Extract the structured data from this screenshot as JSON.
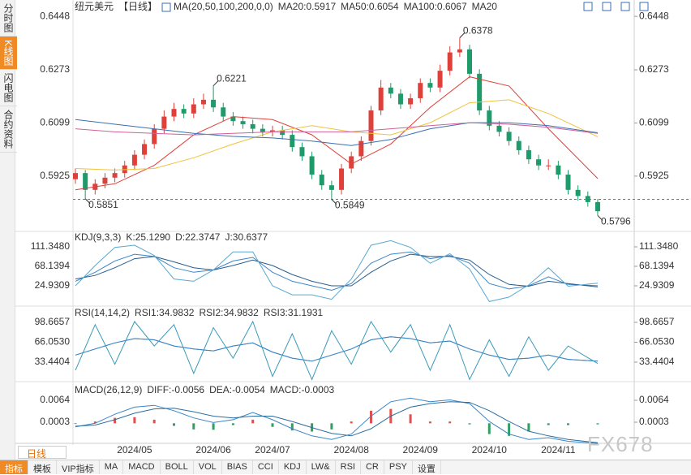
{
  "sidebar": [
    "分时图",
    "K线图",
    "闪电图",
    "合约资料"
  ],
  "toolbar": {
    "period": "日线",
    "tabs": [
      "指标",
      "模板",
      "VIP指标",
      "MA",
      "MACD",
      "BOLL",
      "VOL",
      "BIAS",
      "CCI",
      "KDJ",
      "LW&",
      "RSI",
      "CR",
      "PSY",
      "设置"
    ]
  },
  "watermark": "FX678",
  "chart_data": [
    {
      "type": "candlestick",
      "title": "纽元美元",
      "period_label": "【日线】",
      "indicator": "MA(20,50,100,200,0,0)",
      "categories": [
        null,
        null,
        null,
        null,
        null,
        null,
        "2024/05",
        null,
        null,
        null,
        null,
        null,
        null,
        null,
        "2024/06",
        null,
        null,
        null,
        null,
        null,
        "2024/07",
        null,
        null,
        null,
        null,
        null,
        null,
        null,
        "2024/08",
        null,
        null,
        null,
        null,
        null,
        null,
        "2024/09",
        null,
        null,
        null,
        null,
        null,
        null,
        "2024/10",
        null,
        null,
        null,
        null,
        null,
        null,
        "2024/11",
        null,
        null,
        null,
        null
      ],
      "open": [
        0.5915,
        0.5935,
        0.588,
        0.59,
        0.592,
        0.5935,
        0.596,
        0.5995,
        0.603,
        0.608,
        0.612,
        0.6145,
        0.613,
        0.616,
        0.6175,
        0.615,
        0.612,
        0.6105,
        0.6095,
        0.608,
        0.607,
        0.6075,
        0.606,
        0.602,
        0.599,
        0.593,
        0.5895,
        0.588,
        0.595,
        0.599,
        0.604,
        0.614,
        0.6215,
        0.6195,
        0.616,
        0.618,
        0.623,
        0.6215,
        0.627,
        0.633,
        0.634,
        0.626,
        0.614,
        0.609,
        0.607,
        0.604,
        0.601,
        0.598,
        0.596,
        0.596,
        0.593,
        0.588,
        0.586,
        0.584
      ],
      "high": [
        0.595,
        0.5945,
        0.5915,
        0.5935,
        0.595,
        0.5975,
        0.601,
        0.6045,
        0.6095,
        0.614,
        0.6165,
        0.616,
        0.618,
        0.6195,
        0.6221,
        0.6165,
        0.6135,
        0.612,
        0.611,
        0.6095,
        0.609,
        0.609,
        0.6075,
        0.6035,
        0.6005,
        0.5945,
        0.591,
        0.5965,
        0.6005,
        0.6055,
        0.6155,
        0.624,
        0.623,
        0.621,
        0.6195,
        0.6245,
        0.6245,
        0.629,
        0.635,
        0.6378,
        0.6355,
        0.6275,
        0.6155,
        0.6105,
        0.6085,
        0.6055,
        0.6025,
        0.5995,
        0.598,
        0.5975,
        0.5945,
        0.5895,
        0.5875,
        0.585
      ],
      "low": [
        0.59,
        0.5851,
        0.5865,
        0.5885,
        0.5905,
        0.592,
        0.5945,
        0.598,
        0.6015,
        0.6065,
        0.6105,
        0.6115,
        0.6115,
        0.6145,
        0.6135,
        0.6105,
        0.609,
        0.608,
        0.6065,
        0.6055,
        0.6055,
        0.6045,
        0.6005,
        0.5975,
        0.5915,
        0.588,
        0.5849,
        0.5865,
        0.5935,
        0.5975,
        0.6025,
        0.6125,
        0.618,
        0.6145,
        0.6145,
        0.6165,
        0.62,
        0.62,
        0.6255,
        0.6315,
        0.6245,
        0.6125,
        0.6075,
        0.6055,
        0.6025,
        0.5995,
        0.5965,
        0.5945,
        0.5945,
        0.5915,
        0.5865,
        0.5845,
        0.5825,
        0.5796
      ],
      "close": [
        0.5935,
        0.588,
        0.59,
        0.592,
        0.5935,
        0.596,
        0.5995,
        0.603,
        0.608,
        0.612,
        0.6145,
        0.613,
        0.616,
        0.6175,
        0.615,
        0.612,
        0.6105,
        0.6095,
        0.608,
        0.607,
        0.6075,
        0.606,
        0.602,
        0.599,
        0.593,
        0.5895,
        0.588,
        0.595,
        0.599,
        0.604,
        0.614,
        0.6215,
        0.6195,
        0.616,
        0.618,
        0.623,
        0.6215,
        0.627,
        0.633,
        0.634,
        0.626,
        0.614,
        0.609,
        0.607,
        0.604,
        0.601,
        0.598,
        0.596,
        0.596,
        0.593,
        0.588,
        0.586,
        0.584,
        0.581
      ],
      "up_color": "#e0403a",
      "down_color": "#1f9a6a",
      "ylim": [
        0.5752,
        0.6475
      ],
      "yticks": [
        0.5925,
        0.6099,
        0.6273,
        0.6448
      ],
      "annotations": [
        {
          "label": "0.5851",
          "value": 0.5851,
          "side": "low"
        },
        {
          "label": "0.6221",
          "value": 0.6221,
          "side": "high"
        },
        {
          "label": "0.5849",
          "value": 0.5849,
          "side": "low",
          "line": "dashed"
        },
        {
          "label": "0.6378",
          "value": 0.6378,
          "side": "high"
        },
        {
          "label": "0.5796",
          "value": 0.5796,
          "side": "low"
        }
      ],
      "series": [
        {
          "label": "MA20:0.5917",
          "color": "#e0403a",
          "x": [
            0,
            4,
            8,
            12,
            16,
            20,
            24,
            28,
            32,
            36,
            40,
            44,
            48,
            53
          ],
          "values": [
            0.588,
            0.59,
            0.596,
            0.606,
            0.612,
            0.611,
            0.606,
            0.5965,
            0.603,
            0.615,
            0.625,
            0.622,
            0.608,
            0.5917
          ]
        },
        {
          "label": "MA50:0.6054",
          "color": "#f0c23c",
          "x": [
            0,
            4,
            8,
            12,
            16,
            20,
            24,
            28,
            32,
            36,
            40,
            44,
            48,
            53
          ],
          "values": [
            0.595,
            0.5945,
            0.595,
            0.5985,
            0.603,
            0.607,
            0.609,
            0.607,
            0.606,
            0.61,
            0.6165,
            0.6175,
            0.613,
            0.6054
          ]
        },
        {
          "label": "MA100:0.6067",
          "color": "#3a6fb0",
          "x": [
            0,
            4,
            8,
            12,
            16,
            20,
            24,
            28,
            32,
            36,
            40,
            44,
            48,
            53
          ],
          "values": [
            0.611,
            0.6095,
            0.608,
            0.6065,
            0.6055,
            0.605,
            0.604,
            0.6025,
            0.6045,
            0.608,
            0.61,
            0.61,
            0.609,
            0.6067
          ]
        },
        {
          "label": "MA20",
          "color": "#d0609a",
          "x": [
            0,
            4,
            8,
            12,
            16,
            20,
            24,
            28,
            32,
            36,
            40,
            44,
            48,
            53
          ],
          "values": [
            0.608,
            0.607,
            0.6065,
            0.606,
            0.6065,
            0.607,
            0.607,
            0.607,
            0.608,
            0.609,
            0.61,
            0.6095,
            0.6085,
            0.6065
          ]
        }
      ]
    },
    {
      "type": "line",
      "title": "KDJ(9,3,3)",
      "x": [
        0,
        2,
        4,
        6,
        8,
        10,
        12,
        14,
        16,
        18,
        20,
        22,
        24,
        26,
        28,
        30,
        32,
        34,
        36,
        38,
        40,
        42,
        44,
        46,
        48,
        50,
        53
      ],
      "ylim": [
        -21.87,
        140.15
      ],
      "yticks": [
        24.9309,
        68.1394,
        {
          "value": 111.348,
          "label": "111.3480"
        }
      ],
      "series": [
        {
          "label": "K:25.1290",
          "color": "#3a86c8",
          "values": [
            35,
            55,
            80,
            95,
            90,
            65,
            55,
            60,
            80,
            88,
            55,
            35,
            25,
            15,
            30,
            75,
            95,
            100,
            85,
            92,
            75,
            30,
            18,
            25,
            45,
            28,
            25.129
          ]
        },
        {
          "label": "D:22.3747",
          "color": "#2a5d8f",
          "values": [
            40,
            48,
            65,
            85,
            90,
            78,
            65,
            60,
            70,
            82,
            70,
            50,
            35,
            25,
            25,
            55,
            80,
            95,
            90,
            90,
            82,
            50,
            28,
            24,
            35,
            30,
            22.3747
          ]
        },
        {
          "label": "J:30.6377",
          "color": "#5aa8d0",
          "values": [
            25,
            70,
            110,
            115,
            92,
            40,
            35,
            60,
            100,
            100,
            25,
            5,
            5,
            -5,
            40,
            115,
            125,
            110,
            75,
            96,
            62,
            -10,
            0,
            27,
            65,
            24,
            30.6377
          ]
        }
      ]
    },
    {
      "type": "line",
      "title": "RSI(14,14,2)",
      "x": [
        0,
        2,
        4,
        6,
        8,
        10,
        12,
        14,
        16,
        18,
        20,
        22,
        24,
        26,
        28,
        30,
        32,
        34,
        36,
        38,
        40,
        42,
        44,
        46,
        48,
        50,
        53
      ],
      "ylim": [
        1.5,
        121.3
      ],
      "yticks": [
        33.4404,
        {
          "value": 66.053,
          "label": "66.0530"
        },
        98.6657
      ],
      "series": [
        {
          "label": "RSI1:34.9832",
          "color": "#3a86c8",
          "values": [
            45,
            55,
            65,
            72,
            70,
            60,
            55,
            52,
            60,
            65,
            50,
            40,
            35,
            45,
            55,
            70,
            75,
            72,
            65,
            68,
            55,
            45,
            38,
            40,
            45,
            38,
            34.9832
          ]
        },
        {
          "label": "RSI2:34.9832",
          "color": "#3a86c8",
          "values": [
            45,
            55,
            65,
            72,
            70,
            60,
            55,
            52,
            60,
            65,
            50,
            40,
            35,
            45,
            55,
            70,
            75,
            72,
            65,
            68,
            55,
            45,
            38,
            40,
            45,
            38,
            34.9832
          ]
        },
        {
          "label": "RSI3:31.1931",
          "color": "#3a9ab8",
          "values": [
            20,
            95,
            30,
            100,
            60,
            95,
            15,
            90,
            40,
            100,
            10,
            80,
            5,
            85,
            30,
            100,
            50,
            95,
            20,
            95,
            5,
            70,
            10,
            75,
            20,
            60,
            31.1931
          ]
        }
      ]
    },
    {
      "type": "macd",
      "title": "MACD(26,12,9)",
      "x": [
        0,
        2,
        4,
        6,
        8,
        10,
        12,
        14,
        16,
        18,
        20,
        22,
        24,
        26,
        28,
        30,
        32,
        34,
        36,
        38,
        40,
        42,
        44,
        46,
        48,
        50,
        53
      ],
      "ylim": [
        -0.00535,
        0.01114
      ],
      "yticks": [
        0.0003,
        0.0064
      ],
      "series": [
        {
          "label": "DIFF:-0.0056",
          "color": "#3a86c8",
          "values": [
            -0.001,
            0.0,
            0.0025,
            0.0045,
            0.005,
            0.0035,
            0.0015,
            0.0002,
            0.001,
            0.003,
            0.001,
            -0.0015,
            -0.0035,
            -0.0045,
            -0.003,
            0.002,
            0.006,
            0.007,
            0.006,
            0.0065,
            0.0055,
            0.0005,
            -0.003,
            -0.0045,
            -0.004,
            -0.005,
            -0.0056
          ]
        },
        {
          "label": "DEA:-0.0054",
          "color": "#2a6ea0",
          "values": [
            -0.0008,
            -0.0005,
            0.001,
            0.0028,
            0.004,
            0.0042,
            0.0032,
            0.002,
            0.0015,
            0.002,
            0.002,
            0.0005,
            -0.0012,
            -0.0028,
            -0.0035,
            -0.0015,
            0.002,
            0.0045,
            0.0055,
            0.006,
            0.0058,
            0.0035,
            0.0005,
            -0.0022,
            -0.0035,
            -0.0045,
            -0.0054
          ]
        }
      ],
      "bars": {
        "label": "MACD:-0.0003",
        "up_color": "#e05050",
        "down_color": "#30a060",
        "values": [
          -0.0002,
          0.0005,
          0.0015,
          0.0017,
          0.001,
          -0.0007,
          -0.0017,
          -0.0018,
          -0.0005,
          0.001,
          -0.001,
          -0.002,
          -0.0023,
          -0.0017,
          0.0005,
          0.0035,
          0.004,
          0.0025,
          0.0005,
          0.0005,
          -0.0003,
          -0.003,
          -0.0035,
          -0.0023,
          -0.0005,
          -0.0005,
          -0.0003
        ]
      }
    }
  ]
}
